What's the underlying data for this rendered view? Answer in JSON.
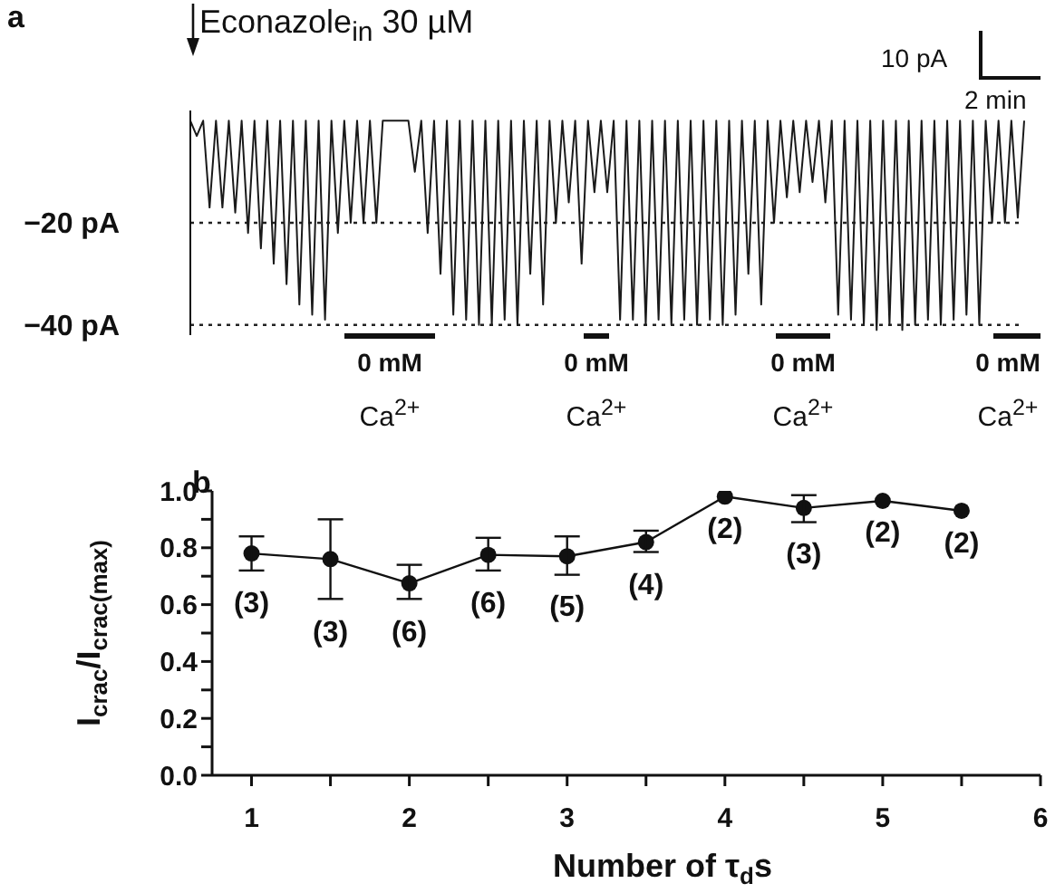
{
  "chart_data": [
    {
      "type": "line",
      "categories": [
        null,
        null,
        null,
        null,
        null,
        null,
        null,
        null,
        null,
        null,
        null,
        null,
        null,
        null,
        null,
        null,
        null,
        null,
        null,
        null,
        null,
        null,
        null,
        null,
        null,
        null,
        null,
        null,
        null,
        null,
        null,
        null,
        null,
        null,
        null,
        null,
        null,
        null,
        null,
        null,
        null,
        null,
        null,
        null,
        null,
        null,
        null,
        null,
        null,
        null,
        null,
        null,
        null,
        null,
        null,
        null,
        null,
        null,
        null,
        null,
        null,
        null,
        null,
        null,
        null,
        null,
        null,
        null,
        null,
        null,
        null,
        null,
        null,
        null,
        null,
        null,
        null,
        null,
        null,
        null,
        null,
        null,
        null,
        null,
        null,
        null,
        null,
        null,
        null,
        null,
        null,
        null,
        null,
        null,
        null,
        null,
        null,
        null,
        null,
        null,
        null,
        null,
        null,
        null,
        null,
        null,
        null,
        null,
        null,
        null,
        null,
        null,
        null,
        null,
        null,
        null,
        null,
        null,
        null,
        null,
        null,
        null,
        null,
        null,
        null,
        null,
        null,
        null,
        null,
        null,
        null
      ],
      "series": [
        {
          "color": "#1a1a1a",
          "values": [
            0,
            -3,
            0,
            -17,
            0,
            -17,
            0,
            -18,
            0,
            -22,
            0,
            -25,
            0,
            -28,
            0,
            -32,
            0,
            -36,
            0,
            -38,
            0,
            -39,
            0,
            -22,
            0,
            -20,
            0,
            -20,
            0,
            -20,
            0,
            0,
            0,
            0,
            0,
            -10,
            0,
            -22,
            0,
            -30,
            0,
            -38,
            0,
            -39,
            0,
            -40,
            0,
            -40,
            0,
            -39,
            0,
            -40,
            0,
            -30,
            0,
            -36,
            0,
            -20,
            0,
            -16,
            0,
            -28,
            0,
            -14,
            0,
            -14,
            0,
            -39,
            0,
            -39,
            0,
            -40,
            0,
            -39,
            0,
            -40,
            0,
            -39,
            0,
            -40,
            0,
            -39,
            0,
            -40,
            0,
            -38,
            0,
            -30,
            0,
            -36,
            0,
            -20,
            0,
            -15,
            0,
            -14,
            0,
            -12,
            0,
            -16,
            0,
            -38,
            0,
            -39,
            0,
            -40,
            0,
            -41,
            0,
            -40,
            0,
            -41,
            0,
            -40,
            0,
            -39,
            0,
            -40,
            0,
            -39,
            0,
            -38,
            0,
            -40,
            0,
            -20,
            0,
            -20,
            0,
            -19,
            0
          ]
        }
      ],
      "ylim": [
        -42,
        2
      ],
      "yticks": [
        {
          "value": -20,
          "label": "−20 pA"
        },
        {
          "value": -40,
          "label": "−40 pA"
        }
      ],
      "tick_labels": "y",
      "ref_lines": [
        {
          "axis": "y",
          "value": -20,
          "line_style": "dotted"
        },
        {
          "axis": "y",
          "value": -40,
          "line_style": "dotted"
        }
      ],
      "annotations": [
        "a",
        "Econazole$_{in}$ 30 µM",
        "10 pA",
        "2 min",
        "0 mM",
        "Ca$^{2+}$",
        "0 mM",
        "Ca$^{2+}$",
        "0 mM",
        "Ca$^{2+}$",
        "0 mM",
        "Ca$^{2+}$"
      ],
      "marker": "none",
      "line_style": "solid",
      "grid": false,
      "legend": false
    },
    {
      "type": "line",
      "x": [
        1,
        1.5,
        2,
        2.5,
        3,
        3.5,
        4,
        4.5,
        5,
        5.5
      ],
      "series": [
        {
          "color": "#111111",
          "values": [
            0.78,
            0.76,
            0.675,
            0.775,
            0.77,
            0.82,
            0.98,
            0.94,
            0.965,
            0.93
          ],
          "errors": [
            [
              0.72,
              0.84
            ],
            [
              0.62,
              0.9
            ],
            [
              0.62,
              0.74
            ],
            [
              0.72,
              0.835
            ],
            [
              0.705,
              0.84
            ],
            [
              0.785,
              0.86
            ],
            null,
            [
              0.89,
              0.985
            ],
            null,
            null
          ]
        }
      ],
      "xlabel": "Number of τ$_{d}$s",
      "ylabel": "I$_{crac}$/I$_{crac(max)}$",
      "xlim": [
        0.75,
        6
      ],
      "xticks": [
        1,
        {
          "value": 1.5,
          "label": null
        },
        2,
        {
          "value": 2.5,
          "label": null
        },
        3,
        {
          "value": 3.5,
          "label": null
        },
        4,
        {
          "value": 4.5,
          "label": null
        },
        5,
        {
          "value": 5.5,
          "label": null
        },
        6
      ],
      "ylim": [
        0,
        1
      ],
      "yticks": [
        {
          "value": 0,
          "label": "0.0"
        },
        {
          "value": 0.1,
          "label": null
        },
        0.2,
        {
          "value": 0.3,
          "label": null
        },
        0.4,
        {
          "value": 0.5,
          "label": null
        },
        0.6,
        {
          "value": 0.7,
          "label": null
        },
        0.8,
        {
          "value": 0.9,
          "label": null
        },
        {
          "value": 1,
          "label": "1.0"
        }
      ],
      "annotations": [
        "b",
        {
          "text": "(3)",
          "x": 1,
          "y": 0.78
        },
        {
          "text": "(3)",
          "x": 1.5,
          "y": 0.76
        },
        {
          "text": "(6)",
          "x": 2,
          "y": 0.675
        },
        {
          "text": "(6)",
          "x": 2.5,
          "y": 0.775
        },
        {
          "text": "(5)",
          "x": 3,
          "y": 0.77
        },
        {
          "text": "(4)",
          "x": 3.5,
          "y": 0.82
        },
        {
          "text": "(2)",
          "x": 4,
          "y": 0.98
        },
        {
          "text": "(3)",
          "x": 4.5,
          "y": 0.94
        },
        {
          "text": "(2)",
          "x": 5,
          "y": 0.965
        },
        {
          "text": "(2)",
          "x": 5.5,
          "y": 0.93
        }
      ],
      "marker": "circle",
      "line_style": "solid",
      "grid": false,
      "legend": false
    }
  ]
}
